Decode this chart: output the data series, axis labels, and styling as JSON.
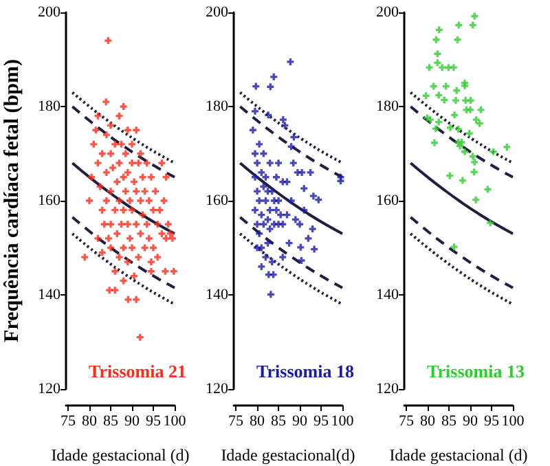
{
  "chart_data": [
    {
      "type": "scatter",
      "xlabel": "Idade gestacional (d)",
      "ylabel": "Frequência cardíaca fetal (bpm)",
      "xlim": [
        74.5,
        100
      ],
      "xticks": [
        75,
        80,
        85,
        90,
        95,
        100
      ],
      "ylim": [
        120,
        200
      ],
      "yticks": [
        120,
        140,
        160,
        180,
        200
      ],
      "marker": "cross",
      "grid": false,
      "annotations": [
        "Trissomia 21"
      ],
      "series": [
        {
          "color": "#ff2a1a",
          "x": [
            84.4,
            83.9,
            78.9,
            84.7,
            89.1,
            91,
            91.9,
            94.5,
            97.8,
            99.8,
            80,
            80.5,
            81,
            81.5,
            82,
            82,
            82.5,
            83,
            83,
            83.5,
            84,
            84,
            84,
            84.5,
            85,
            85,
            85,
            85,
            85,
            85.5,
            86,
            86,
            86,
            86.5,
            86.5,
            87,
            87,
            87,
            87,
            87.5,
            87.5,
            88,
            88,
            88,
            88,
            88.5,
            88.5,
            89,
            89,
            89,
            89,
            89.5,
            89.5,
            90,
            90,
            90,
            90,
            90.5,
            90.5,
            91,
            91,
            91,
            91.5,
            91.5,
            92,
            92,
            92,
            92.5,
            92.5,
            93,
            93,
            93.5,
            93.5,
            94,
            94,
            94.5,
            94.5,
            95,
            95,
            95.5,
            96,
            96,
            96.5,
            97,
            97.5,
            98,
            98.5,
            99,
            99.5,
            98,
            97,
            83,
            82,
            88,
            86
          ],
          "values": [
            194,
            181,
            148,
            141,
            139,
            139,
            131,
            145,
            145,
            145,
            160,
            165,
            172,
            175,
            178,
            168,
            163,
            158,
            170,
            155,
            174,
            166,
            160,
            152,
            176,
            170,
            162,
            155,
            150,
            167,
            172,
            158,
            145,
            164,
            153,
            178,
            168,
            160,
            148,
            172,
            155,
            180,
            165,
            158,
            150,
            170,
            162,
            175,
            166,
            155,
            147,
            160,
            152,
            172,
            168,
            158,
            150,
            164,
            144,
            175,
            162,
            155,
            168,
            148,
            170,
            160,
            153,
            165,
            157,
            162,
            150,
            168,
            155,
            160,
            152,
            165,
            147,
            158,
            150,
            162,
            155,
            148,
            158,
            153,
            160,
            152,
            155,
            153,
            152,
            165,
            168,
            149,
            152,
            143,
            141
          ]
        },
        {
          "type": "line",
          "color": "#1f1f3f",
          "line_style": "dotted",
          "marker": "none",
          "x": [
            76,
            80,
            84,
            88,
            92,
            96,
            100
          ],
          "values": [
            183,
            180,
            177.2,
            174.6,
            172.2,
            170,
            168
          ]
        },
        {
          "type": "line",
          "color": "#1f1f3f",
          "line_style": "dashed",
          "marker": "none",
          "x": [
            76,
            80,
            84,
            88,
            92,
            96,
            100
          ],
          "values": [
            180,
            177,
            174.2,
            171.6,
            169.2,
            167,
            165
          ]
        },
        {
          "type": "line",
          "color": "#1f1f3f",
          "line_style": "solid",
          "marker": "none",
          "x": [
            76,
            80,
            84,
            88,
            92,
            96,
            100
          ],
          "values": [
            168,
            165,
            162.2,
            159.6,
            157.2,
            155,
            153
          ]
        },
        {
          "type": "line",
          "color": "#1f1f3f",
          "line_style": "dashed",
          "marker": "none",
          "x": [
            76,
            80,
            84,
            88,
            92,
            96,
            100
          ],
          "values": [
            156.5,
            153.5,
            150.7,
            148.1,
            145.7,
            143.5,
            141.5
          ]
        },
        {
          "type": "line",
          "color": "#1f1f3f",
          "line_style": "dotted",
          "marker": "none",
          "x": [
            76,
            80,
            84,
            88,
            92,
            96,
            100
          ],
          "values": [
            153,
            150,
            147.2,
            144.6,
            142.2,
            140,
            138
          ]
        }
      ]
    },
    {
      "type": "scatter",
      "xlabel": "Idade gestacional(d)",
      "xlim": [
        74.5,
        100
      ],
      "xticks": [
        75,
        80,
        85,
        90,
        95,
        100
      ],
      "ylim": [
        120,
        200
      ],
      "yticks": [
        120,
        140,
        160,
        180,
        200
      ],
      "marker": "cross",
      "grid": false,
      "annotations": [
        "Trissomia 18"
      ],
      "series": [
        {
          "color": "#1a1aaa",
          "x": [
            87.8,
            83.9,
            79.7,
            83.1,
            86.1,
            82.6,
            82.7,
            83.8,
            83.2,
            99.6,
            99.6,
            94.4,
            93.2,
            91,
            93.4,
            90.2,
            90.4,
            79.5,
            88.6,
            88,
            79,
            79.5,
            79.5,
            79.5,
            80,
            80,
            80,
            80.5,
            80.5,
            80.5,
            81,
            81,
            81,
            81.5,
            81.5,
            81.5,
            82,
            82,
            82,
            82.5,
            82.5,
            82.5,
            83,
            83,
            83,
            83.5,
            83.5,
            84,
            84,
            84.5,
            84.5,
            85,
            85,
            85,
            85.5,
            86,
            86,
            86.5,
            87,
            87,
            87.5,
            88,
            88.5,
            89,
            89.5,
            90,
            90.5,
            91,
            92,
            92.5,
            93,
            80,
            81,
            86
          ],
          "values": [
            189.5,
            186.3,
            184.3,
            184.2,
            177.2,
            178.2,
            144.3,
            144.3,
            140.1,
            164.2,
            165,
            160.2,
            161,
            162.6,
            149.7,
            150.1,
            147.3,
            179,
            173.5,
            171.5,
            175,
            170,
            165,
            158,
            168,
            162,
            155,
            172,
            160,
            153,
            166,
            157,
            150,
            170,
            163,
            155,
            165,
            160,
            148,
            162,
            156,
            151,
            168,
            158,
            154,
            162,
            147,
            160,
            155,
            165,
            158,
            168,
            160,
            155,
            157,
            164,
            155,
            176,
            164,
            157,
            151,
            160,
            168,
            156,
            166,
            155,
            166,
            158,
            152,
            166,
            154,
            150,
            146,
            148
          ]
        },
        {
          "type": "line",
          "color": "#1f1f3f",
          "line_style": "dotted",
          "marker": "none",
          "x": [
            76,
            80,
            84,
            88,
            92,
            96,
            100
          ],
          "values": [
            183,
            180,
            177.2,
            174.6,
            172.2,
            170,
            168
          ]
        },
        {
          "type": "line",
          "color": "#1f1f3f",
          "line_style": "dashed",
          "marker": "none",
          "x": [
            76,
            80,
            84,
            88,
            92,
            96,
            100
          ],
          "values": [
            180,
            177,
            174.2,
            171.6,
            169.2,
            167,
            165
          ]
        },
        {
          "type": "line",
          "color": "#1f1f3f",
          "line_style": "solid",
          "marker": "none",
          "x": [
            76,
            80,
            84,
            88,
            92,
            96,
            100
          ],
          "values": [
            168,
            165,
            162.2,
            159.6,
            157.2,
            155,
            153
          ]
        },
        {
          "type": "line",
          "color": "#1f1f3f",
          "line_style": "dashed",
          "marker": "none",
          "x": [
            76,
            80,
            84,
            88,
            92,
            96,
            100
          ],
          "values": [
            156.5,
            153.5,
            150.7,
            148.1,
            145.7,
            143.5,
            141.5
          ]
        },
        {
          "type": "line",
          "color": "#1f1f3f",
          "line_style": "dotted",
          "marker": "none",
          "x": [
            76,
            80,
            84,
            88,
            92,
            96,
            100
          ],
          "values": [
            153,
            150,
            147.2,
            144.6,
            142.2,
            140,
            138
          ]
        }
      ]
    },
    {
      "type": "scatter",
      "xlabel": "Idade gestacional (d)",
      "xlim": [
        74.5,
        100
      ],
      "xticks": [
        75,
        80,
        85,
        90,
        95,
        100
      ],
      "ylim": [
        120,
        200
      ],
      "yticks": [
        120,
        140,
        160,
        180,
        200
      ],
      "marker": "cross",
      "grid": false,
      "annotations": [
        "Trissomia 13"
      ],
      "series": [
        {
          "color": "#2ecc2e",
          "x": [
            91,
            90.6,
            87.3,
            82.7,
            82,
            87,
            82.3,
            82.3,
            80.4,
            83.4,
            84.9,
            86.1,
            88.7,
            88.7,
            81.4,
            84.3,
            86.8,
            82.6,
            79.6,
            83.9,
            86.6,
            88.9,
            90.1,
            92.5,
            89.1,
            90,
            79.9,
            80.6,
            82.6,
            86.3,
            91.4,
            92.2,
            85.3,
            81.9,
            87.2,
            89.8,
            81.6,
            87.2,
            88,
            87.6,
            98.6,
            88.7,
            95.4,
            90.6,
            91,
            90.9,
            85.2,
            88.2,
            94.1,
            91.3,
            94.7,
            86.2
          ],
          "values": [
            199.2,
            197.3,
            197.3,
            196.3,
            194.2,
            194.2,
            191.2,
            189.3,
            188.3,
            188.3,
            188.3,
            188.3,
            185,
            184.4,
            184.3,
            184.3,
            183.4,
            182.4,
            182.3,
            181.4,
            181.3,
            181.3,
            181.3,
            179.3,
            179.3,
            179.3,
            177.6,
            177.2,
            176.7,
            178.2,
            177.2,
            176.4,
            175.5,
            175.3,
            175.2,
            174.3,
            172.3,
            172.4,
            172.4,
            171.6,
            171.4,
            170.4,
            170.4,
            169.4,
            168.2,
            166.1,
            165.3,
            164.3,
            162.4,
            160.2,
            155.3,
            150.2
          ]
        },
        {
          "type": "line",
          "color": "#1f1f3f",
          "line_style": "dotted",
          "marker": "none",
          "x": [
            76,
            80,
            84,
            88,
            92,
            96,
            100
          ],
          "values": [
            183,
            180,
            177.2,
            174.6,
            172.2,
            170,
            168
          ]
        },
        {
          "type": "line",
          "color": "#1f1f3f",
          "line_style": "dashed",
          "marker": "none",
          "x": [
            76,
            80,
            84,
            88,
            92,
            96,
            100
          ],
          "values": [
            180,
            177,
            174.2,
            171.6,
            169.2,
            167,
            165
          ]
        },
        {
          "type": "line",
          "color": "#1f1f3f",
          "line_style": "solid",
          "marker": "none",
          "x": [
            76,
            80,
            84,
            88,
            92,
            96,
            100
          ],
          "values": [
            168,
            165,
            162.2,
            159.6,
            157.2,
            155,
            153
          ]
        },
        {
          "type": "line",
          "color": "#1f1f3f",
          "line_style": "dashed",
          "marker": "none",
          "x": [
            76,
            80,
            84,
            88,
            92,
            96,
            100
          ],
          "values": [
            156.5,
            153.5,
            150.7,
            148.1,
            145.7,
            143.5,
            141.5
          ]
        },
        {
          "type": "line",
          "color": "#1f1f3f",
          "line_style": "dotted",
          "marker": "none",
          "x": [
            76,
            80,
            84,
            88,
            92,
            96,
            100
          ],
          "values": [
            153,
            150,
            147.2,
            144.6,
            142.2,
            140,
            138
          ]
        }
      ]
    }
  ]
}
